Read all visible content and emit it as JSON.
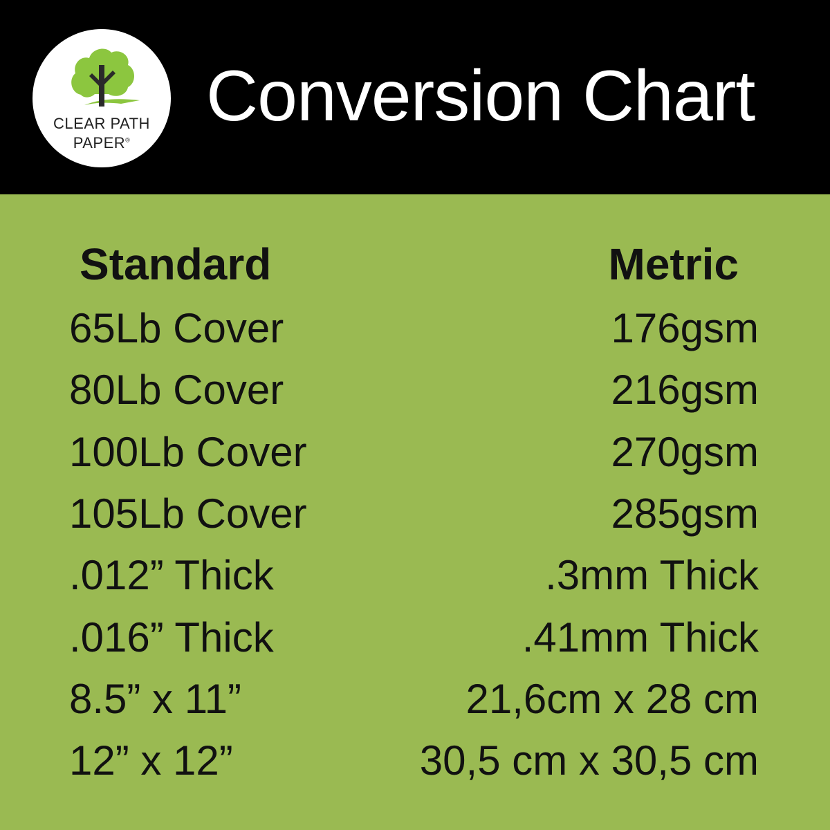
{
  "header": {
    "logo": {
      "line1": "CLEAR PATH",
      "line2": "PAPER",
      "mark": "®"
    },
    "title": "Conversion Chart"
  },
  "colors": {
    "header_bg": "#000000",
    "body_bg": "#9aba52",
    "logo_green": "#8cc63f",
    "text": "#111111"
  },
  "table": {
    "headers": {
      "standard": "Standard",
      "metric": "Metric"
    },
    "rows": [
      {
        "standard": "65Lb Cover",
        "metric": "176gsm"
      },
      {
        "standard": "80Lb Cover",
        "metric": "216gsm"
      },
      {
        "standard": "100Lb Cover",
        "metric": "270gsm"
      },
      {
        "standard": "105Lb Cover",
        "metric": "285gsm"
      },
      {
        "standard": ".012” Thick",
        "metric": ".3mm Thick"
      },
      {
        "standard": ".016” Thick",
        "metric": ".41mm Thick"
      },
      {
        "standard": "8.5” x 11”",
        "metric": "21,6cm x 28 cm"
      },
      {
        "standard": "12” x 12”",
        "metric": "30,5 cm x 30,5 cm"
      }
    ]
  }
}
